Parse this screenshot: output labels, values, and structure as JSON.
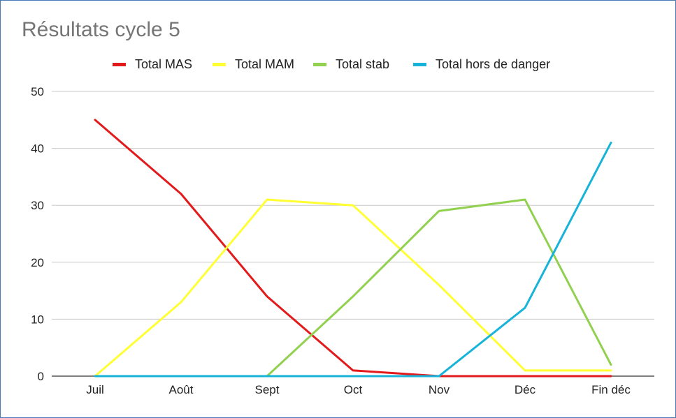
{
  "chart_data": {
    "type": "line",
    "title": "Résultats cycle 5",
    "categories": [
      "Juil",
      "Août",
      "Sept",
      "Oct",
      "Nov",
      "Déc",
      "Fin déc"
    ],
    "ylim": [
      0,
      50
    ],
    "yticks": [
      "0",
      "10",
      "20",
      "30",
      "40",
      "50"
    ],
    "grid": true,
    "legend_position": "top",
    "series": [
      {
        "name": "Total MAS",
        "color": "#e31a1c",
        "values": [
          45,
          32,
          14,
          1,
          0,
          0,
          0
        ]
      },
      {
        "name": "Total MAM",
        "color": "#ffff33",
        "values": [
          0,
          13,
          31,
          30,
          16,
          1,
          1
        ]
      },
      {
        "name": "Total stab",
        "color": "#92d050",
        "values": [
          0,
          0,
          0,
          14,
          29,
          31,
          2
        ]
      },
      {
        "name": "Total hors de danger",
        "color": "#17b3d8",
        "values": [
          0,
          0,
          0,
          0,
          0,
          12,
          41
        ]
      }
    ]
  }
}
